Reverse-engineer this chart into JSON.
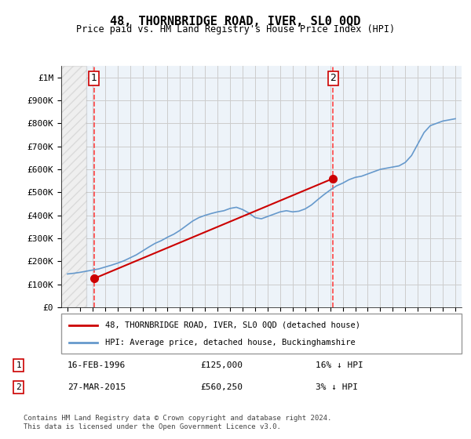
{
  "title": "48, THORNBRIDGE ROAD, IVER, SL0 0QD",
  "subtitle": "Price paid vs. HM Land Registry's House Price Index (HPI)",
  "legend_line1": "48, THORNBRIDGE ROAD, IVER, SL0 0QD (detached house)",
  "legend_line2": "HPI: Average price, detached house, Buckinghamshire",
  "footnote": "Contains HM Land Registry data © Crown copyright and database right 2024.\nThis data is licensed under the Open Government Licence v3.0.",
  "transaction1_label": "1",
  "transaction1_date": "16-FEB-1996",
  "transaction1_price": "£125,000",
  "transaction1_hpi": "16% ↓ HPI",
  "transaction1_year": 1996.12,
  "transaction1_value": 125000,
  "transaction2_label": "2",
  "transaction2_date": "27-MAR-2015",
  "transaction2_price": "£560,250",
  "transaction2_hpi": "3% ↓ HPI",
  "transaction2_year": 2015.23,
  "transaction2_value": 560250,
  "price_line_color": "#cc0000",
  "hpi_line_color": "#6699cc",
  "dashed_line_color": "#ff4444",
  "marker_color": "#cc0000",
  "background_hatch_color": "#e8eef8",
  "grid_color": "#cccccc",
  "ylim": [
    0,
    1050000
  ],
  "yticks": [
    0,
    100000,
    200000,
    300000,
    400000,
    500000,
    600000,
    700000,
    800000,
    900000,
    1000000
  ],
  "xlim_start": 1993.5,
  "xlim_end": 2025.5,
  "xtick_years": [
    1994,
    1995,
    1996,
    1997,
    1998,
    1999,
    2000,
    2001,
    2002,
    2003,
    2004,
    2005,
    2006,
    2007,
    2008,
    2009,
    2010,
    2011,
    2012,
    2013,
    2014,
    2015,
    2016,
    2017,
    2018,
    2019,
    2020,
    2021,
    2022,
    2023,
    2024,
    2025
  ],
  "hpi_years": [
    1994,
    1994.5,
    1995,
    1995.5,
    1996,
    1996.5,
    1997,
    1997.5,
    1998,
    1998.5,
    1999,
    1999.5,
    2000,
    2000.5,
    2001,
    2001.5,
    2002,
    2002.5,
    2003,
    2003.5,
    2004,
    2004.5,
    2005,
    2005.5,
    2006,
    2006.5,
    2007,
    2007.5,
    2008,
    2008.5,
    2009,
    2009.5,
    2010,
    2010.5,
    2011,
    2011.5,
    2012,
    2012.5,
    2013,
    2013.5,
    2014,
    2014.5,
    2015,
    2015.5,
    2016,
    2016.5,
    2017,
    2017.5,
    2018,
    2018.5,
    2019,
    2019.5,
    2020,
    2020.5,
    2021,
    2021.5,
    2022,
    2022.5,
    2023,
    2023.5,
    2024,
    2024.5,
    2025
  ],
  "hpi_values": [
    145000,
    148000,
    152000,
    157000,
    162000,
    167000,
    175000,
    183000,
    192000,
    202000,
    215000,
    228000,
    245000,
    262000,
    278000,
    290000,
    305000,
    318000,
    335000,
    355000,
    375000,
    390000,
    400000,
    408000,
    415000,
    420000,
    430000,
    435000,
    425000,
    410000,
    390000,
    385000,
    395000,
    405000,
    415000,
    420000,
    415000,
    418000,
    428000,
    445000,
    468000,
    490000,
    510000,
    528000,
    540000,
    555000,
    565000,
    570000,
    580000,
    590000,
    600000,
    605000,
    610000,
    615000,
    630000,
    660000,
    710000,
    760000,
    790000,
    800000,
    810000,
    815000,
    820000
  ],
  "price_years": [
    1996.12,
    2015.23
  ],
  "price_values": [
    125000,
    560250
  ]
}
